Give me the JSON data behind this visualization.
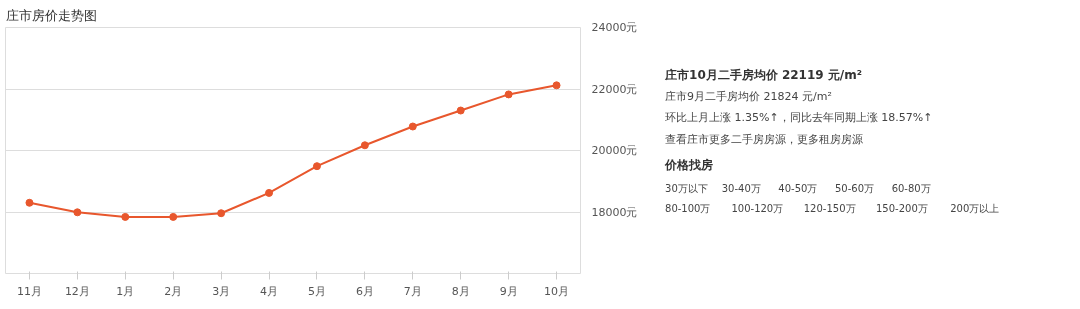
{
  "chart_data": [
    {
      "type": "line",
      "title": "庄市房价走势图",
      "categories": [
        "11月",
        "12月",
        "1月",
        "2月",
        "3月",
        "4月",
        "5月",
        "6月",
        "7月",
        "8月",
        "9月",
        "10月"
      ],
      "series": [
        {
          "color": "#e8572d",
          "values": [
            18300,
            17990,
            17840,
            17840,
            17960,
            18620,
            19490,
            20170,
            20780,
            21300,
            21824,
            22119
          ]
        }
      ],
      "ylim": [
        16000,
        24000
      ],
      "yticks": [
        {
          "value": 16000,
          "label": null
        },
        {
          "value": 18000,
          "label": "18000元"
        },
        {
          "value": 20000,
          "label": "20000元"
        },
        {
          "value": 22000,
          "label": "22000元"
        },
        {
          "value": 24000,
          "label": "24000元"
        }
      ],
      "grid": "y",
      "marker": "circle",
      "line_style": "solid"
    },
    {
      "type": "other",
      "title": "庄市10月二手房均价 22119 元/m²",
      "subtitle": "价格找房",
      "annotations": [
        "庄市9月二手房均价 21824 元/m²",
        "环比上月上涨 1.35%↑，同比去年同期上涨 18.57%↑",
        "查看庄市更多二手房房源，更多租房房源",
        "30万以下",
        "30-40万",
        "40-50万",
        "50-60万",
        "60-80万",
        "80-100万",
        "100-120万",
        "120-150万",
        "150-200万",
        "200万以上"
      ]
    }
  ]
}
